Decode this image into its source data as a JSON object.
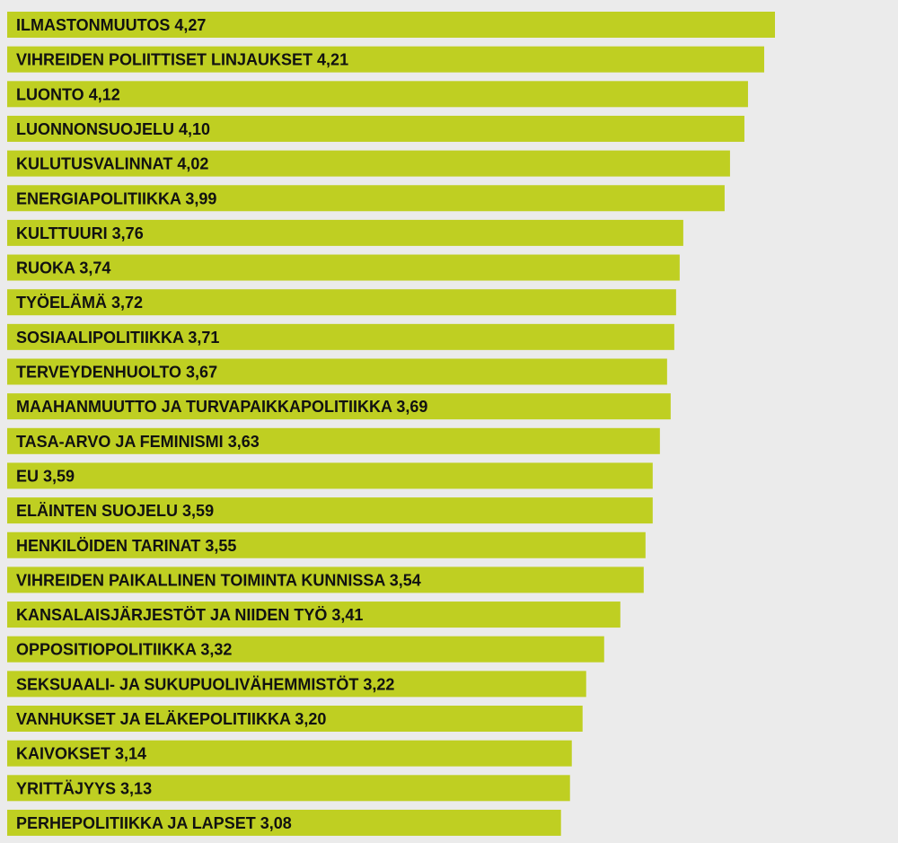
{
  "chart_data": {
    "type": "bar",
    "orientation": "horizontal",
    "categories": [
      "ILMASTONMUUTOS",
      "VIHREIDEN POLIITTISET LINJAUKSET",
      "LUONTO",
      "LUONNONSUOJELU",
      "KULUTUSVALINNAT",
      "ENERGIAPOLITIIKKA",
      "KULTTUURI",
      "RUOKA",
      "TYÖELÄMÄ",
      "SOSIAALIPOLITIIKKA",
      "TERVEYDENHUOLTO",
      "MAAHANMUUTTO JA TURVAPAIKKAPOLITIIKKA",
      "TASA-ARVO JA FEMINISMI",
      "EU",
      "ELÄINTEN SUOJELU",
      "HENKILÖIDEN TARINAT",
      "VIHREIDEN PAIKALLINEN TOIMINTA KUNNISSA",
      "KANSALAISJÄRJESTÖT JA NIIDEN TYÖ",
      "OPPOSITIOPOLITIIKKA",
      "SEKSUAALI- JA SUKUPUOLIVÄHEMMISTÖT",
      "VANHUKSET JA ELÄKEPOLITIIKKA",
      "KAIVOKSET",
      "YRITTÄJYYS",
      "PERHEPOLITIIKKA JA LAPSET"
    ],
    "values": [
      4.27,
      4.21,
      4.12,
      4.1,
      4.02,
      3.99,
      3.76,
      3.74,
      3.72,
      3.71,
      3.67,
      3.69,
      3.63,
      3.59,
      3.59,
      3.55,
      3.54,
      3.41,
      3.32,
      3.22,
      3.2,
      3.14,
      3.13,
      3.08
    ],
    "value_labels": [
      "4,27",
      "4,21",
      "4,12",
      "4,10",
      "4,02",
      "3,99",
      "3,76",
      "3,74",
      "3,72",
      "3,71",
      "3,67",
      "3,69",
      "3,63",
      "3,59",
      "3,59",
      "3,55",
      "3,54",
      "3,41",
      "3,32",
      "3,22",
      "3,20",
      "3,14",
      "3,13",
      "3,08"
    ],
    "bar_color": "#bfcf22",
    "background_color": "#ebebeb",
    "label_color": "#111111",
    "grid": false,
    "legend": "none"
  }
}
